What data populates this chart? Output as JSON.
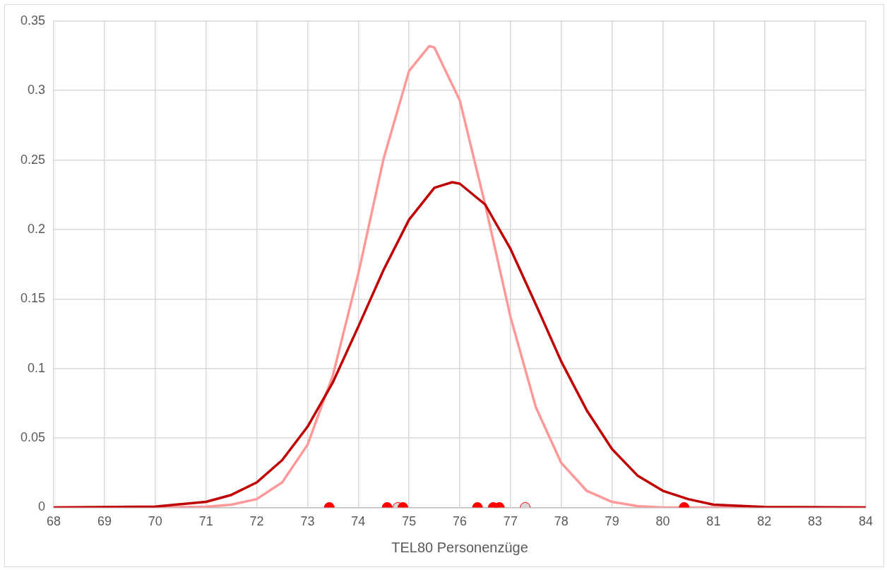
{
  "chart_data": {
    "type": "line",
    "xlabel": "TEL80 Personenzüge",
    "xlim": [
      68,
      84
    ],
    "xticks": [
      68,
      69,
      70,
      71,
      72,
      73,
      74,
      75,
      76,
      77,
      78,
      79,
      80,
      81,
      82,
      83,
      84
    ],
    "ylim": [
      0,
      0.35
    ],
    "yticks": [
      0,
      0.05,
      0.1,
      0.15,
      0.2,
      0.25,
      0.3,
      0.35
    ],
    "grid": true,
    "legend": false,
    "marker": "none",
    "line_style": "solid",
    "series": [
      {
        "type": "line",
        "color": "#c00000",
        "x": [
          68,
          70,
          71,
          71.5,
          72,
          72.5,
          73,
          73.5,
          74,
          74.5,
          75,
          75.5,
          75.85,
          76,
          76.5,
          77,
          77.5,
          78,
          78.5,
          79,
          79.5,
          80,
          80.5,
          81,
          82,
          84
        ],
        "values": [
          0,
          0.0006,
          0.004,
          0.009,
          0.018,
          0.034,
          0.058,
          0.09,
          0.13,
          0.171,
          0.207,
          0.23,
          0.234,
          0.233,
          0.218,
          0.186,
          0.146,
          0.105,
          0.07,
          0.042,
          0.023,
          0.012,
          0.006,
          0.002,
          0.0003,
          0
        ]
      },
      {
        "type": "line",
        "color": "#ff9999",
        "x": [
          68,
          70,
          71,
          71.5,
          72,
          72.5,
          73,
          73.5,
          74,
          74.5,
          75,
          75.4,
          75.5,
          76,
          76.5,
          77,
          77.5,
          78,
          78.5,
          79,
          79.5,
          80,
          81,
          84
        ],
        "values": [
          0,
          0,
          0.0004,
          0.002,
          0.006,
          0.018,
          0.045,
          0.095,
          0.168,
          0.251,
          0.314,
          0.332,
          0.331,
          0.293,
          0.218,
          0.137,
          0.072,
          0.032,
          0.012,
          0.004,
          0.001,
          0,
          0,
          0
        ]
      },
      {
        "type": "scatter",
        "marker": "circle",
        "x": [
          73.43,
          74.57,
          74.78,
          74.88,
          76.35,
          76.66,
          76.78,
          77.29,
          80.42
        ],
        "values": [
          0,
          0,
          0,
          0,
          0,
          0,
          0,
          0,
          0
        ],
        "colors": [
          "#ff0000",
          "#ff0000",
          "#d9d9d9",
          "#ff0000",
          "#ff0000",
          "#ff0000",
          "#ff0000",
          "#d9d9d9",
          "#ff0000"
        ]
      }
    ]
  }
}
